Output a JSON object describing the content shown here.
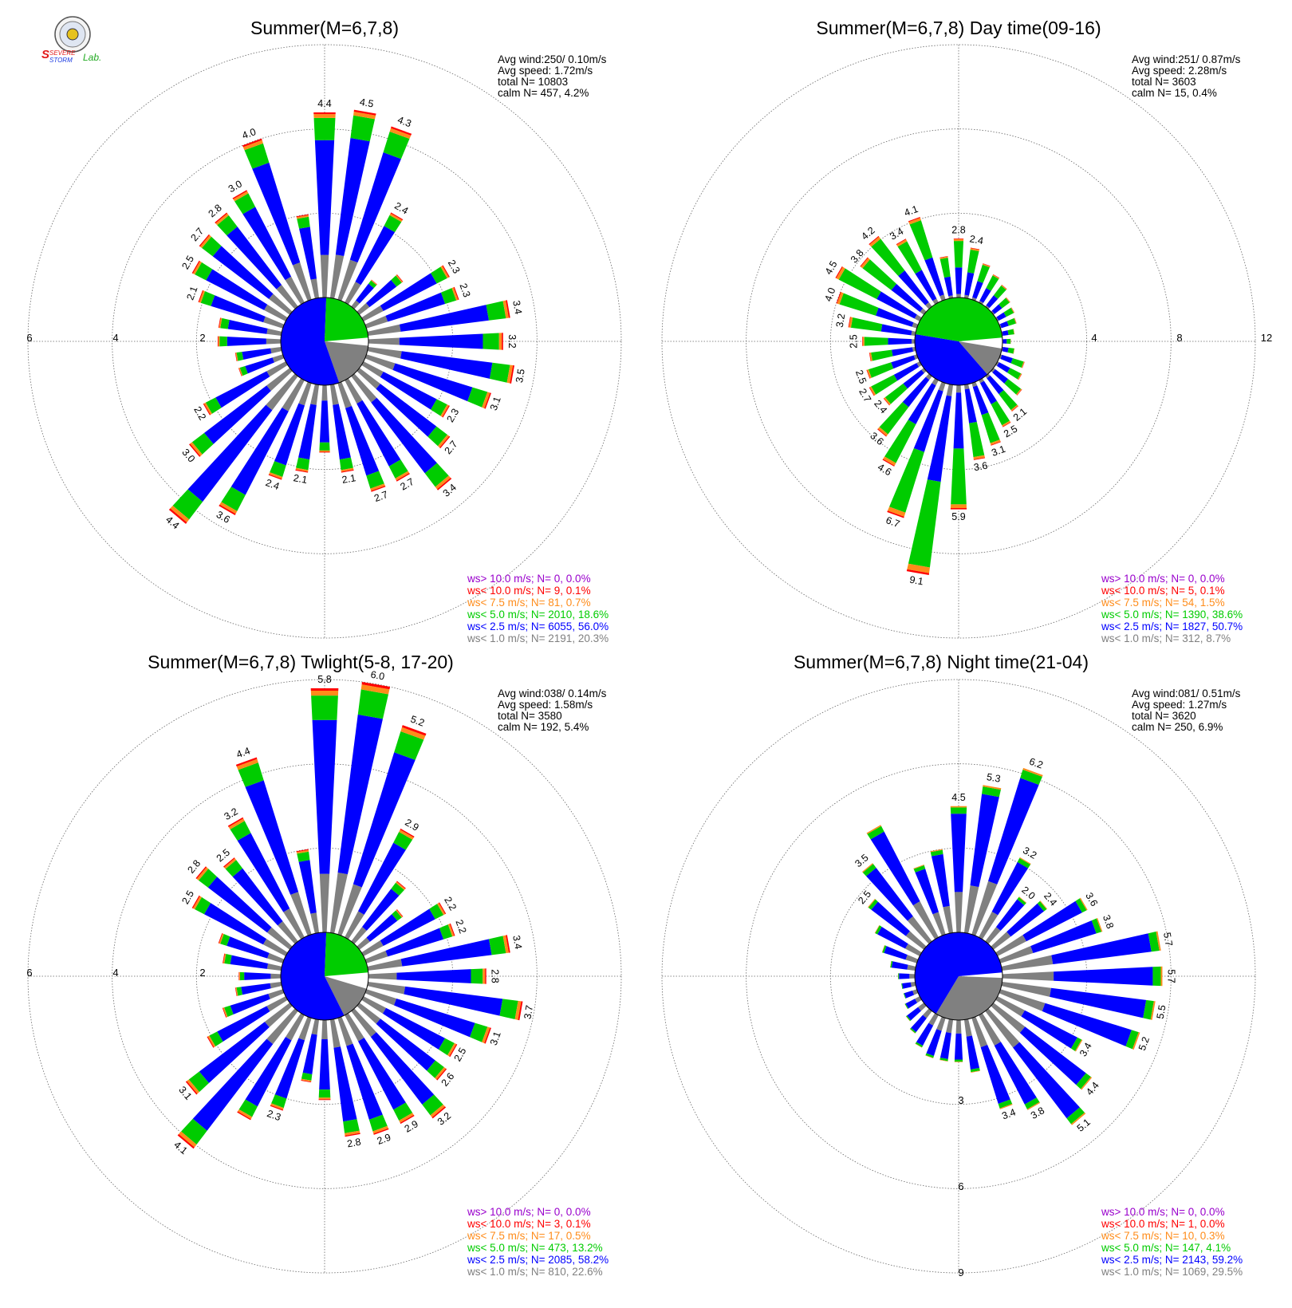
{
  "logo": {
    "top_text": "SEVERE",
    "bottom_text": "STORM",
    "lab_text": "Lab."
  },
  "legend_colors": [
    "#9900cc",
    "#ff0000",
    "#ff8c1a",
    "#00cc00",
    "#0000ff",
    "#808080"
  ],
  "chart_data": [
    {
      "type": "wind-rose",
      "title": "Summer(M=6,7,8)",
      "stats": {
        "avg_wind": "Avg wind:250/ 0.10m/s",
        "avg_speed": "Avg speed: 1.72m/s",
        "total": "total N=       10803",
        "calm": "calm N=    457,   4.2%"
      },
      "axis_ticks": [
        "2",
        "4",
        "6"
      ],
      "axis_max": 6,
      "n_directions": 36,
      "direction_totals": [
        4.4,
        4.5,
        4.3,
        2.4,
        0.8,
        1.3,
        2.3,
        2.3,
        3.4,
        3.2,
        3.5,
        3.1,
        2.3,
        2.7,
        3.4,
        2.7,
        2.7,
        2.1,
        1.6,
        2.1,
        2.4,
        3.6,
        4.4,
        3.0,
        2.2,
        1.1,
        1.1,
        1.5,
        1.5,
        2.1,
        2.5,
        2.7,
        2.8,
        3.0,
        4.0,
        2.0
      ],
      "direction_labels": [
        "4.4",
        "4.5",
        "4.3",
        "2.4",
        "",
        "",
        "2.3",
        "2.3",
        "3.4",
        "3.2",
        "3.5",
        "3.1",
        "2.3",
        "2.7",
        "3.4",
        "2.7",
        "2.7",
        "2.1",
        "",
        "2.1",
        "2.4",
        "3.6",
        "4.4",
        "3.0",
        "2.2",
        "",
        "",
        "",
        "",
        "2.1",
        "2.5",
        "2.7",
        "2.8",
        "3.0",
        "4.0",
        ""
      ],
      "speed_mix": [
        0,
        0.01,
        0.02,
        0.12,
        0.62,
        0.23
      ],
      "calm_pie": [
        0.03,
        0.18,
        0.56,
        0.23
      ],
      "legend": [
        "ws> 10.0 m/s; N=      0,  0.0%",
        "ws< 10.0 m/s; N=      9,  0.1%",
        "ws<  7.5 m/s; N=     81,  0.7%",
        "ws<  5.0 m/s; N=  2010, 18.6%",
        "ws<  2.5 m/s; N=  6055, 56.0%",
        "ws<  1.0 m/s; N=  2191, 20.3%"
      ]
    },
    {
      "type": "wind-rose",
      "title": "Summer(M=6,7,8) Day time(09-16)",
      "stats": {
        "avg_wind": "Avg wind:251/ 0.87m/s",
        "avg_speed": "Avg speed: 2.28m/s",
        "total": "total N=        3603",
        "calm": "calm N=      15,   0.4%"
      },
      "axis_ticks": [
        "4",
        "8",
        "12"
      ],
      "axis_max": 12,
      "n_directions": 36,
      "direction_totals": [
        2.8,
        2.4,
        1.8,
        1.5,
        1.3,
        1.0,
        0.9,
        0.8,
        0.6,
        0.4,
        0.6,
        1.2,
        1.3,
        1.7,
        2.1,
        2.5,
        3.1,
        3.6,
        5.9,
        9.1,
        6.7,
        4.6,
        3.6,
        2.4,
        2.7,
        2.5,
        2.2,
        2.5,
        3.2,
        4.0,
        4.5,
        3.8,
        4.2,
        3.4,
        4.1,
        2.0
      ],
      "direction_labels": [
        "2.8",
        "2.4",
        "",
        "",
        "",
        "",
        "",
        "",
        "",
        "",
        "",
        "",
        "",
        "",
        "2.1",
        "2.5",
        "3.1",
        "3.6",
        "5.9",
        "9.1",
        "6.7",
        "4.6",
        "3.6",
        "2.4",
        "2.7",
        "2.5",
        "",
        "2.5",
        "3.2",
        "4.0",
        "4.5",
        "3.8",
        "4.2",
        "3.4",
        "4.1",
        ""
      ],
      "speed_mix": [
        0,
        0.01,
        0.03,
        0.45,
        0.45,
        0.06
      ],
      "calm_pie": [
        0.04,
        0.11,
        0.39,
        0.46
      ],
      "legend": [
        "ws> 10.0 m/s; N=      0,  0.0%",
        "ws< 10.0 m/s; N=      5,  0.1%",
        "ws<  7.5 m/s; N=     54,  1.5%",
        "ws<  5.0 m/s; N=  1390, 38.6%",
        "ws<  2.5 m/s; N=  1827, 50.7%",
        "ws<  1.0 m/s; N=   312,  8.7%"
      ]
    },
    {
      "type": "wind-rose",
      "title": "Summer(M=6,7,8) Twlight(5-8, 17-20)",
      "stats": {
        "avg_wind": "Avg wind:038/ 0.14m/s",
        "avg_speed": "Avg speed: 1.58m/s",
        "total": "total N=        3580",
        "calm": "calm N=    192,   5.4%"
      },
      "axis_ticks": [
        "2",
        "4",
        "6"
      ],
      "axis_max": 6,
      "n_directions": 36,
      "direction_totals": [
        5.8,
        6.0,
        5.2,
        2.9,
        1.8,
        1.3,
        2.2,
        2.2,
        3.4,
        2.8,
        3.7,
        3.1,
        2.5,
        2.6,
        3.2,
        2.9,
        2.9,
        2.8,
        1.9,
        1.5,
        2.3,
        2.8,
        4.1,
        3.1,
        2.1,
        1.5,
        1.1,
        1.0,
        1.4,
        1.6,
        2.5,
        2.8,
        2.5,
        3.2,
        4.4,
        2.0
      ],
      "direction_labels": [
        "5.8",
        "6.0",
        "5.2",
        "2.9",
        "",
        "",
        "2.2",
        "2.2",
        "3.4",
        "2.8",
        "3.7",
        "3.1",
        "2.5",
        "2.6",
        "3.2",
        "2.9",
        "2.9",
        "2.8",
        "",
        "",
        "2.3",
        "",
        "4.1",
        "3.1",
        "",
        "",
        "",
        "",
        "",
        "",
        "2.5",
        "2.8",
        "2.5",
        "3.2",
        "4.4",
        ""
      ],
      "speed_mix": [
        0,
        0.01,
        0.02,
        0.1,
        0.63,
        0.24
      ],
      "calm_pie": [
        0.06,
        0.13,
        0.58,
        0.23
      ],
      "legend": [
        "ws> 10.0 m/s; N=      0,  0.0%",
        "ws< 10.0 m/s; N=      3,  0.1%",
        "ws<  7.5 m/s; N=     17,  0.5%",
        "ws<  5.0 m/s; N=   473, 13.2%",
        "ws<  2.5 m/s; N=  2085, 58.2%",
        "ws<  1.0 m/s; N=   810, 22.6%"
      ]
    },
    {
      "type": "wind-rose",
      "title": "Summer(M=6,7,8) Night time(21-04)",
      "stats": {
        "avg_wind": "Avg wind:081/ 0.51m/s",
        "avg_speed": "Avg speed: 1.27m/s",
        "total": "total N=        3620",
        "calm": "calm N=    250,   6.9%"
      },
      "axis_ticks": [
        "3",
        "6",
        "9"
      ],
      "axis_max": 9,
      "n_directions": 36,
      "direction_totals": [
        4.5,
        5.3,
        6.2,
        3.2,
        2.0,
        2.4,
        3.6,
        3.8,
        5.7,
        5.7,
        5.5,
        5.2,
        3.4,
        4.4,
        5.1,
        3.8,
        3.4,
        1.9,
        1.5,
        1.5,
        1.5,
        1.3,
        1.0,
        0.8,
        0.6,
        0.5,
        0.5,
        0.6,
        0.9,
        1.3,
        1.8,
        2.5,
        3.5,
        4.5,
        2.6,
        3.0
      ],
      "direction_labels": [
        "4.5",
        "5.3",
        "6.2",
        "3.2",
        "2.0",
        "2.4",
        "3.6",
        "3.8",
        "5.7",
        "5.7",
        "5.5",
        "5.2",
        "3.4",
        "4.4",
        "5.1",
        "3.8",
        "3.4",
        "",
        "",
        "",
        "",
        "",
        "",
        "",
        "",
        "",
        "",
        "",
        "",
        "",
        "",
        "2.5",
        "3.5",
        "",
        "",
        ""
      ],
      "speed_mix": [
        0,
        0.0,
        0.01,
        0.05,
        0.62,
        0.32
      ],
      "calm_pie": [
        0.02,
        0.33,
        0.65
      ],
      "legend": [
        "ws> 10.0 m/s; N=      0,  0.0%",
        "ws< 10.0 m/s; N=      1,  0.0%",
        "ws<  7.5 m/s; N=     10,  0.3%",
        "ws<  5.0 m/s; N=   147,  4.1%",
        "ws<  2.5 m/s; N=  2143, 59.2%",
        "ws<  1.0 m/s; N=  1069, 29.5%"
      ]
    }
  ]
}
